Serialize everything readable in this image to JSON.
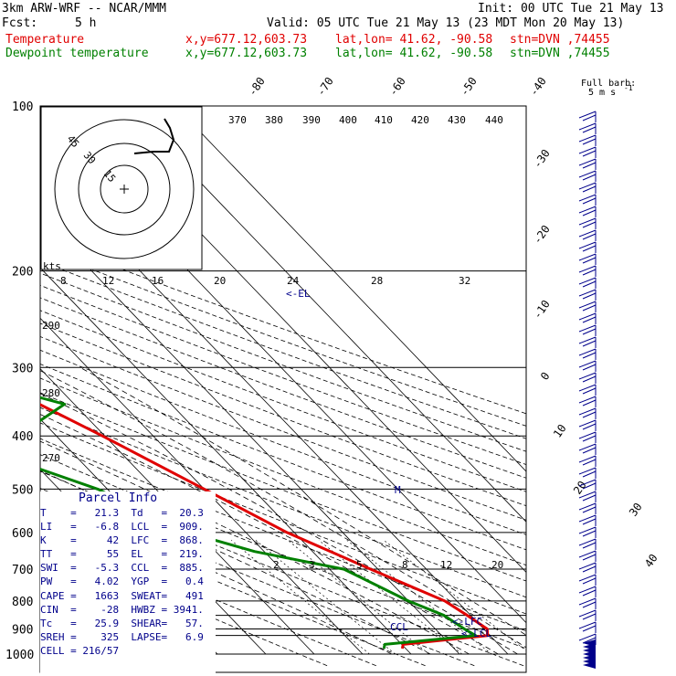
{
  "header": {
    "model": "3km ARW-WRF -- NCAR/MMM",
    "init": "Init: 00 UTC Tue 21 May 13",
    "fcst_label": "Fcst:",
    "fcst_value": "5 h",
    "valid": "Valid: 05 UTC Tue 21 May 13 (23 MDT Mon 20 May 13)",
    "lines": [
      {
        "name": "Temperature",
        "coords": "x,y=677.12,603.73",
        "latlon": "lat,lon= 41.62, -90.58",
        "stn": "stn=DVN ,74455",
        "color": "#e00000"
      },
      {
        "name": "Dewpoint temperature",
        "coords": "x,y=677.12,603.73",
        "latlon": "lat,lon= 41.62, -90.58",
        "stn": "stn=DVN ,74455",
        "color": "#008000"
      }
    ]
  },
  "barb_legend": {
    "line1": "Full barb:",
    "line2": "5 m s",
    "exp": "-1"
  },
  "chart_data": {
    "type": "line",
    "title": "Skew-T log-P sounding",
    "pressure_ticks": [
      100,
      200,
      300,
      400,
      500,
      600,
      700,
      800,
      900,
      1000
    ],
    "isotherm_labels_top": [
      "-80",
      "-70",
      "-60",
      "-50",
      "-40"
    ],
    "isotherm_labels_right": [
      "-30",
      "-20",
      "-10",
      "0",
      "10",
      "20",
      "30",
      "40"
    ],
    "theta_labels_top": [
      "370",
      "380",
      "390",
      "400",
      "410",
      "420",
      "430",
      "440"
    ],
    "theta_labels_left": [
      "290",
      "280",
      "270"
    ],
    "mixing_ratio_labels": [
      "2",
      "3",
      "5",
      "8",
      "12",
      "20"
    ],
    "hodograph_kts_label": "kts",
    "hodograph_ring_labels": [
      "15",
      "30",
      "45"
    ],
    "hodograph_speed_ticks": [
      "8",
      "12",
      "16",
      "20",
      "24",
      "28",
      "32"
    ],
    "series": [
      {
        "name": "Temperature",
        "color": "#e00000",
        "points": [
          [
            977,
            -0.7
          ],
          [
            960,
            0.3
          ],
          [
            925,
            19.5
          ],
          [
            900,
            20.7
          ],
          [
            850,
            19.3
          ],
          [
            800,
            17.5
          ],
          [
            700,
            8.5
          ],
          [
            600,
            -1.5
          ],
          [
            500,
            -10
          ],
          [
            400,
            -20.5
          ],
          [
            300,
            -35
          ],
          [
            250,
            -45
          ],
          [
            225,
            -52
          ],
          [
            200,
            -56
          ],
          [
            170,
            -57.5
          ],
          [
            150,
            -58
          ],
          [
            125,
            -60
          ],
          [
            100,
            -64
          ]
        ]
      },
      {
        "name": "Dewpoint temperature",
        "color": "#008000",
        "points": [
          [
            977,
            -4.5
          ],
          [
            960,
            -3.5
          ],
          [
            925,
            17
          ],
          [
            900,
            16
          ],
          [
            850,
            14.5
          ],
          [
            800,
            10
          ],
          [
            700,
            3
          ],
          [
            650,
            -12
          ],
          [
            600,
            -22
          ],
          [
            500,
            -32
          ],
          [
            450,
            -42
          ],
          [
            420,
            -43
          ],
          [
            400,
            -38
          ],
          [
            350,
            -22
          ],
          [
            330,
            -30
          ],
          [
            300,
            -48
          ],
          [
            280,
            -60
          ],
          [
            250,
            -60
          ],
          [
            230,
            -57
          ],
          [
            200,
            -62
          ],
          [
            175,
            -67
          ],
          [
            150,
            -68
          ],
          [
            130,
            -71
          ],
          [
            120,
            -74
          ],
          [
            100,
            -78
          ]
        ]
      }
    ],
    "annotations": [
      "<-EL",
      "<-LFC",
      "<-LCL",
      "CCL",
      "M"
    ],
    "parcel_info": {
      "title": "Parcel Info",
      "rows": [
        {
          "l": "T",
          "lv": "21.3",
          "r": "Td",
          "rv": "20.3"
        },
        {
          "l": "LI",
          "lv": "-6.8",
          "r": "LCL",
          "rv": "909."
        },
        {
          "l": "K",
          "lv": "42",
          "r": "LFC",
          "rv": "868."
        },
        {
          "l": "TT",
          "lv": "55",
          "r": "EL",
          "rv": "219."
        },
        {
          "l": "SWI",
          "lv": "-5.3",
          "r": "CCL",
          "rv": "885."
        },
        {
          "l": "PW",
          "lv": "4.02",
          "r": "YGP",
          "rv": "0.4"
        },
        {
          "l": "CAPE",
          "lv": "1663",
          "r": "SWEAT",
          "rv": "491"
        },
        {
          "l": "CIN",
          "lv": "-28",
          "r": "HWBZ",
          "rv": "3941."
        },
        {
          "l": "Tc",
          "lv": "25.9",
          "r": "SHEAR",
          "rv": "57."
        },
        {
          "l": "SREH",
          "lv": "325",
          "r": "LAPSE",
          "rv": "6.9"
        }
      ],
      "cell": "CELL = 216/57"
    }
  }
}
